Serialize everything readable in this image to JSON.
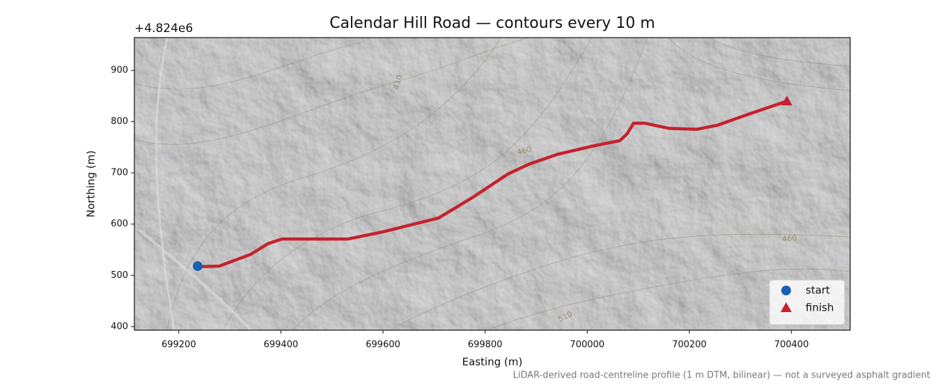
{
  "chart_data": {
    "type": "line",
    "title": "Calendar Hill Road — contours every 10 m",
    "x_label": "Easting (m)",
    "y_label": "Northing (m)",
    "y_offset_label": "+4.824e6",
    "footnote": "LiDAR-derived road-centreline profile (1 m DTM, bilinear) — not a surveyed asphalt gradient",
    "xlim": [
      699113,
      700515
    ],
    "ylim": [
      393,
      964
    ],
    "xticks": [
      699200,
      699400,
      699600,
      699800,
      700000,
      700200,
      700400
    ],
    "yticks": [
      400,
      500,
      600,
      700,
      800,
      900
    ],
    "contour_labels": [
      "410",
      "460",
      "460",
      "510"
    ],
    "legend_position": "lower right",
    "series": [
      {
        "color": "#c4222e",
        "x": [
          699245,
          699279,
          699341,
          699375,
          699402,
          699532,
          699600,
          699668,
          699709,
          699777,
          699845,
          699886,
          699941,
          700009,
          700064,
          700077,
          700091,
          700112,
          700160,
          700214,
          700255,
          700323,
          700391
        ],
        "y": [
          517,
          518,
          541,
          562,
          571,
          571,
          585,
          602,
          612,
          653,
          698,
          717,
          736,
          752,
          763,
          775,
          797,
          797,
          787,
          785,
          793,
          817,
          840
        ]
      },
      {
        "name": "start",
        "color": "#1a5fb4",
        "marker": "circle",
        "x": [
          699237
        ],
        "y": [
          518
        ]
      },
      {
        "name": "finish",
        "color": "#c4222e",
        "marker": "triangle",
        "x": [
          700391
        ],
        "y": [
          840
        ]
      }
    ]
  }
}
